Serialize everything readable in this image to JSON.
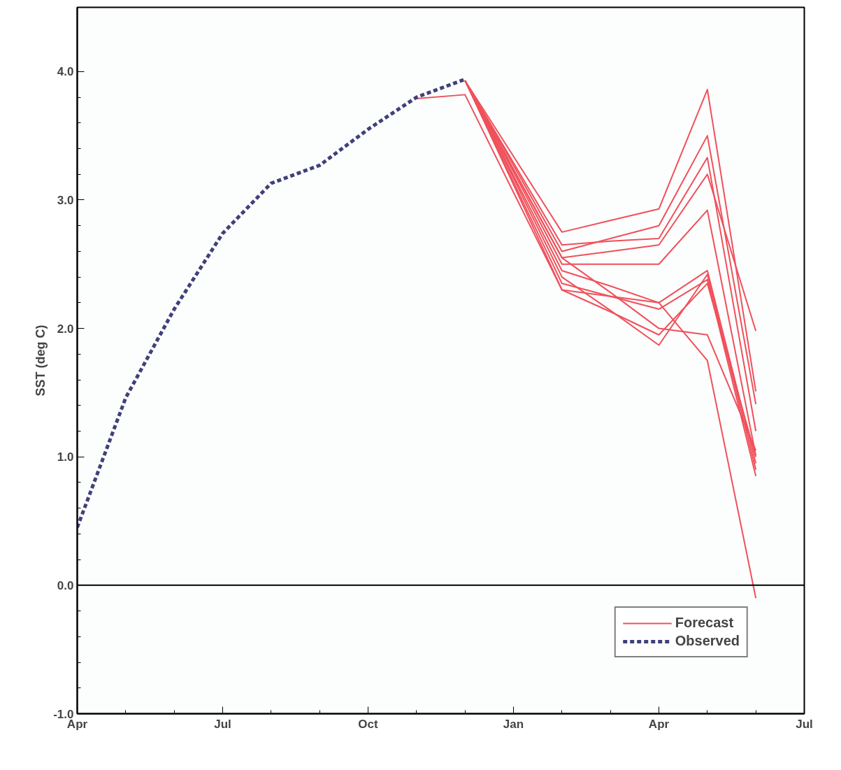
{
  "chart_data": {
    "type": "line",
    "ylabel": "SST (deg C)",
    "categories": [
      "Apr",
      null,
      null,
      "Jul",
      null,
      null,
      "Oct",
      null,
      null,
      "Jan",
      null,
      null,
      "Apr",
      null,
      null,
      "Jul"
    ],
    "ylim": [
      -1,
      4.5
    ],
    "yticks": [
      {
        "value": -1,
        "label": "-1.0"
      },
      {
        "value": 0,
        "label": "0.0"
      },
      {
        "value": 1,
        "label": "1.0"
      },
      {
        "value": 2,
        "label": "2.0"
      },
      {
        "value": 3,
        "label": "3.0"
      },
      {
        "value": 4,
        "label": "4.0"
      }
    ],
    "grid": false,
    "legend": "bottom right",
    "ref_lines": [
      {
        "axis": "y",
        "value": 0,
        "color": "#000000"
      }
    ],
    "series": [
      {
        "name": "Forecast",
        "color": "#f0505a",
        "line_style": "solid",
        "values": [
          null,
          null,
          null,
          null,
          null,
          null,
          null,
          null,
          3.93,
          3.34,
          2.75,
          2.84,
          2.93,
          3.86,
          1.51,
          null
        ]
      },
      {
        "color": "#f0505a",
        "line_style": "solid",
        "values": [
          null,
          null,
          null,
          null,
          null,
          null,
          null,
          null,
          3.93,
          3.27,
          2.6,
          2.7,
          2.8,
          3.5,
          1.41,
          null
        ]
      },
      {
        "color": "#f0505a",
        "line_style": "solid",
        "values": [
          null,
          null,
          null,
          null,
          null,
          null,
          null,
          null,
          3.93,
          3.29,
          2.65,
          2.68,
          2.7,
          3.33,
          1.2,
          null
        ]
      },
      {
        "color": "#f0505a",
        "line_style": "solid",
        "values": [
          null,
          null,
          null,
          null,
          null,
          null,
          null,
          null,
          3.93,
          3.24,
          2.55,
          2.6,
          2.65,
          3.2,
          1.98,
          null
        ]
      },
      {
        "color": "#f0505a",
        "line_style": "solid",
        "values": [
          null,
          null,
          null,
          null,
          null,
          null,
          null,
          null,
          3.93,
          3.22,
          2.5,
          2.5,
          2.5,
          2.92,
          1.01,
          null
        ]
      },
      {
        "color": "#f0505a",
        "line_style": "solid",
        "values": [
          null,
          null,
          null,
          null,
          null,
          null,
          null,
          null,
          3.93,
          3.19,
          2.45,
          2.33,
          2.2,
          2.45,
          0.95,
          null
        ]
      },
      {
        "color": "#f0505a",
        "line_style": "solid",
        "values": [
          null,
          null,
          null,
          null,
          null,
          null,
          null,
          null,
          3.93,
          3.14,
          2.35,
          2.25,
          2.15,
          2.38,
          0.85,
          null
        ]
      },
      {
        "color": "#f0505a",
        "line_style": "solid",
        "values": [
          null,
          null,
          null,
          null,
          null,
          null,
          null,
          null,
          3.93,
          3.12,
          2.3,
          2.13,
          1.95,
          2.35,
          1.0,
          null
        ]
      },
      {
        "color": "#f0505a",
        "line_style": "solid",
        "values": [
          null,
          null,
          null,
          null,
          null,
          null,
          null,
          null,
          3.93,
          3.17,
          2.4,
          2.14,
          1.87,
          2.42,
          0.9,
          null
        ]
      },
      {
        "color": "#f0505a",
        "line_style": "solid",
        "values": [
          null,
          null,
          null,
          null,
          null,
          null,
          null,
          null,
          3.93,
          3.24,
          2.55,
          2.28,
          2.0,
          1.95,
          1.05,
          null
        ]
      },
      {
        "color": "#f0505a",
        "line_style": "solid",
        "values": [
          null,
          null,
          null,
          null,
          null,
          null,
          null,
          3.79,
          3.82,
          3.06,
          2.3,
          2.25,
          2.2,
          1.75,
          -0.1,
          null
        ]
      },
      {
        "name": "Observed",
        "color": "#40407a",
        "line_style": "dashed",
        "values": [
          0.45,
          1.46,
          2.15,
          2.74,
          3.13,
          3.27,
          3.55,
          3.8,
          3.94,
          null,
          null,
          null,
          null,
          null,
          null,
          null
        ]
      }
    ]
  }
}
